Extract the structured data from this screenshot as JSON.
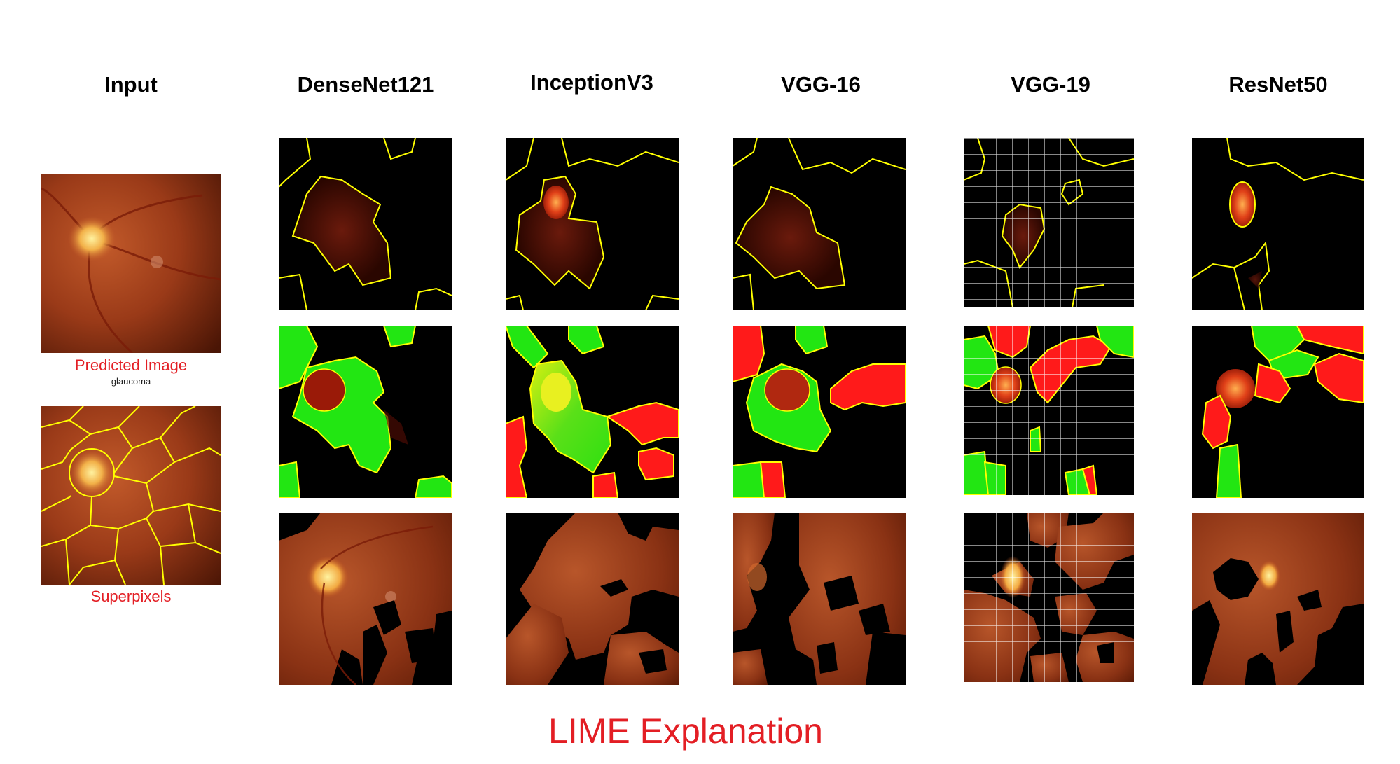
{
  "columns": {
    "input": "Input",
    "densenet": "DenseNet121",
    "inception": "InceptionV3",
    "vgg16": "VGG-16",
    "vgg19": "VGG-19",
    "resnet": "ResNet50"
  },
  "input_panel": {
    "predicted_label": "Predicted Image",
    "prediction": "glaucoma",
    "superpixels_label": "Superpixels"
  },
  "footer": {
    "title": "LIME Explanation"
  },
  "colors": {
    "caption_red": "#e31e24",
    "boundary_yellow": "#ffff00",
    "positive_green": "#1fe600",
    "negative_red": "#ff1a1a",
    "background": "#000000"
  }
}
